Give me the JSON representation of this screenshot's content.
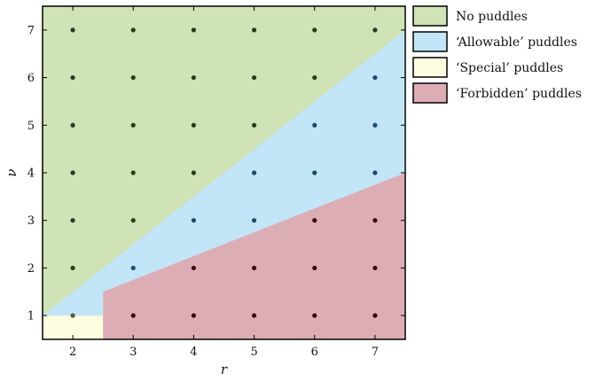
{
  "chart_data": {
    "type": "scatter",
    "xlabel": "r",
    "ylabel": "ν",
    "xlim": [
      1.5,
      7.5
    ],
    "ylim": [
      0.5,
      7.5
    ],
    "x_ticks": [
      2,
      3,
      4,
      5,
      6,
      7
    ],
    "y_ticks": [
      1,
      2,
      3,
      4,
      5,
      6,
      7
    ],
    "grid": false,
    "legend_position": "outside-right",
    "regions": [
      {
        "key": "none",
        "label": "No puddles",
        "color": "#cfe3b6"
      },
      {
        "key": "allowable",
        "label": "‘Allowable’ puddles",
        "color": "#c2e6f7"
      },
      {
        "key": "special",
        "label": "‘Special’ puddles",
        "color": "#fefde1"
      },
      {
        "key": "forbidden",
        "label": "‘Forbidden’ puddles",
        "color": "#ddadb6"
      }
    ],
    "region_boundaries": {
      "upper_line": [
        [
          1.5,
          1.0
        ],
        [
          7.5,
          7.0
        ]
      ],
      "lower_line": [
        [
          2.5,
          1.5
        ],
        [
          7.5,
          4.0
        ]
      ],
      "special_box": {
        "x": [
          1.5,
          2.5
        ],
        "y": [
          0.5,
          1.0
        ]
      }
    },
    "points": [
      {
        "x": 2,
        "y": 1,
        "region": "special"
      },
      {
        "x": 2,
        "y": 2,
        "region": "none"
      },
      {
        "x": 2,
        "y": 3,
        "region": "none"
      },
      {
        "x": 2,
        "y": 4,
        "region": "none"
      },
      {
        "x": 2,
        "y": 5,
        "region": "none"
      },
      {
        "x": 2,
        "y": 6,
        "region": "none"
      },
      {
        "x": 2,
        "y": 7,
        "region": "none"
      },
      {
        "x": 3,
        "y": 1,
        "region": "forbidden"
      },
      {
        "x": 3,
        "y": 2,
        "region": "allowable"
      },
      {
        "x": 3,
        "y": 3,
        "region": "none"
      },
      {
        "x": 3,
        "y": 4,
        "region": "none"
      },
      {
        "x": 3,
        "y": 5,
        "region": "none"
      },
      {
        "x": 3,
        "y": 6,
        "region": "none"
      },
      {
        "x": 3,
        "y": 7,
        "region": "none"
      },
      {
        "x": 4,
        "y": 1,
        "region": "forbidden"
      },
      {
        "x": 4,
        "y": 2,
        "region": "forbidden"
      },
      {
        "x": 4,
        "y": 3,
        "region": "allowable"
      },
      {
        "x": 4,
        "y": 4,
        "region": "none"
      },
      {
        "x": 4,
        "y": 5,
        "region": "none"
      },
      {
        "x": 4,
        "y": 6,
        "region": "none"
      },
      {
        "x": 4,
        "y": 7,
        "region": "none"
      },
      {
        "x": 5,
        "y": 1,
        "region": "forbidden"
      },
      {
        "x": 5,
        "y": 2,
        "region": "forbidden"
      },
      {
        "x": 5,
        "y": 3,
        "region": "allowable"
      },
      {
        "x": 5,
        "y": 4,
        "region": "allowable"
      },
      {
        "x": 5,
        "y": 5,
        "region": "none"
      },
      {
        "x": 5,
        "y": 6,
        "region": "none"
      },
      {
        "x": 5,
        "y": 7,
        "region": "none"
      },
      {
        "x": 6,
        "y": 1,
        "region": "forbidden"
      },
      {
        "x": 6,
        "y": 2,
        "region": "forbidden"
      },
      {
        "x": 6,
        "y": 3,
        "region": "forbidden"
      },
      {
        "x": 6,
        "y": 4,
        "region": "allowable"
      },
      {
        "x": 6,
        "y": 5,
        "region": "allowable"
      },
      {
        "x": 6,
        "y": 6,
        "region": "none"
      },
      {
        "x": 6,
        "y": 7,
        "region": "none"
      },
      {
        "x": 7,
        "y": 1,
        "region": "forbidden"
      },
      {
        "x": 7,
        "y": 2,
        "region": "forbidden"
      },
      {
        "x": 7,
        "y": 3,
        "region": "forbidden"
      },
      {
        "x": 7,
        "y": 4,
        "region": "allowable"
      },
      {
        "x": 7,
        "y": 5,
        "region": "allowable"
      },
      {
        "x": 7,
        "y": 6,
        "region": "allowable"
      },
      {
        "x": 7,
        "y": 7,
        "region": "none"
      }
    ],
    "point_colors": {
      "none": "#2a3a1c",
      "allowable": "#1c4a66",
      "special": "#5a5a3a",
      "forbidden": "#3a0a12"
    }
  }
}
